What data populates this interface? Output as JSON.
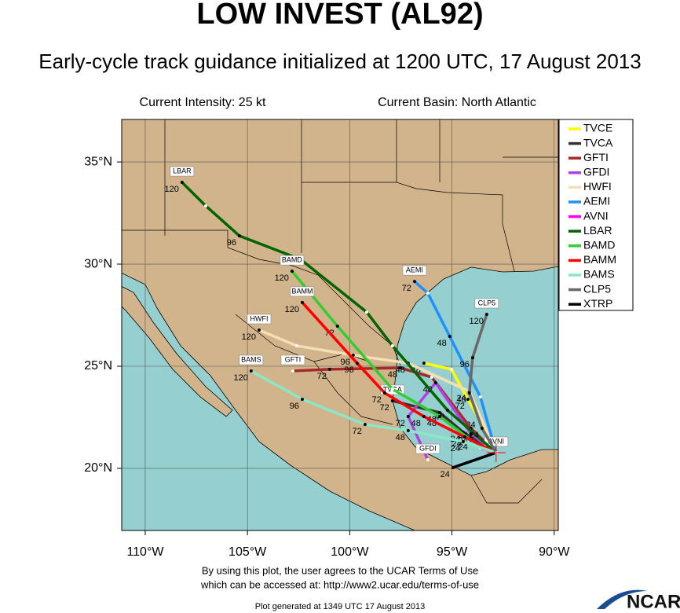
{
  "header": {
    "title": "LOW INVEST (AL92)",
    "subtitle": "Early-cycle track guidance initialized at 1200 UTC, 17 August 2013",
    "intensity": "Current Intensity: 25 kt",
    "basin": "Current Basin: North Atlantic"
  },
  "map": {
    "lonlim": [
      -111.15,
      -89.8
    ],
    "latlim": [
      16.96,
      37.08
    ],
    "lonticks": [
      {
        "value": -110,
        "label": "110°W"
      },
      {
        "value": -105,
        "label": "105°W"
      },
      {
        "value": -100,
        "label": "100°W"
      },
      {
        "value": -95,
        "label": "95°W"
      },
      {
        "value": -90,
        "label": "90°W"
      }
    ],
    "latticks": [
      {
        "value": 20,
        "label": "20°N"
      },
      {
        "value": 25,
        "label": "25°N"
      },
      {
        "value": 30,
        "label": "30°N"
      },
      {
        "value": 35,
        "label": "35°N"
      }
    ],
    "grid": true,
    "start": {
      "lon": -92.84,
      "lat": 20.77
    }
  },
  "tracks": [
    {
      "name": "TVCE",
      "color": "#ffff00",
      "boxed": false,
      "points": [
        {
          "lon": -92.84,
          "lat": 20.77
        },
        {
          "lon": -93.69,
          "lat": 22.46,
          "label": "24"
        },
        {
          "lon": -94.22,
          "lat": 23.38,
          "label": "72"
        },
        {
          "lon": -95.03,
          "lat": 24.85
        },
        {
          "lon": -96.37,
          "lat": 25.15,
          "label": "48"
        }
      ]
    },
    {
      "name": "TVCA",
      "color": "#333333",
      "boxed": true,
      "points": [
        {
          "lon": -92.84,
          "lat": 20.77
        },
        {
          "lon": -94.45,
          "lat": 21.77,
          "label": "24"
        },
        {
          "lon": -95.6,
          "lat": 22.73,
          "label": "48"
        },
        {
          "lon": -97.91,
          "lat": 23.31,
          "label": "72"
        }
      ]
    },
    {
      "name": "GFTI",
      "color": "#a52a2a",
      "boxed": true,
      "points": [
        {
          "lon": -92.84,
          "lat": 20.77
        },
        {
          "lon": -94.07,
          "lat": 21.96,
          "label": "24"
        },
        {
          "lon": -95.99,
          "lat": 24.46
        },
        {
          "lon": -97.52,
          "lat": 24.92,
          "label": "48"
        },
        {
          "lon": -100.98,
          "lat": 24.85,
          "label": "72"
        },
        {
          "lon": -102.78,
          "lat": 24.77
        }
      ]
    },
    {
      "name": "GFDI",
      "color": "#b040e0",
      "boxed": true,
      "points": [
        {
          "lon": -92.84,
          "lat": 20.77
        },
        {
          "lon": -94.07,
          "lat": 21.69,
          "label": "24"
        },
        {
          "lon": -95.8,
          "lat": 24.19,
          "label": "48"
        },
        {
          "lon": -97.14,
          "lat": 22.54,
          "label": "72"
        },
        {
          "lon": -96.18,
          "lat": 20.42
        }
      ]
    },
    {
      "name": "HWFI",
      "color": "#f5deb3",
      "boxed": true,
      "points": [
        {
          "lon": -92.84,
          "lat": 20.77
        },
        {
          "lon": -94.15,
          "lat": 23.77,
          "label": "24"
        },
        {
          "lon": -97.14,
          "lat": 25.15,
          "label": "48"
        },
        {
          "lon": -99.83,
          "lat": 25.54,
          "label": "96"
        },
        {
          "lon": -102.59,
          "lat": 26.0
        },
        {
          "lon": -104.43,
          "lat": 26.77,
          "label": "120"
        }
      ]
    },
    {
      "name": "AEMI",
      "color": "#1e90ff",
      "boxed": true,
      "points": [
        {
          "lon": -92.84,
          "lat": 20.77
        },
        {
          "lon": -93.61,
          "lat": 23.5
        },
        {
          "lon": -95.11,
          "lat": 26.46,
          "label": "48"
        },
        {
          "lon": -96.18,
          "lat": 28.58
        },
        {
          "lon": -96.83,
          "lat": 29.15,
          "label": "72"
        }
      ]
    },
    {
      "name": "AVNI",
      "color": "#ff00ff",
      "boxed": true,
      "points": [
        {
          "lon": -93.61,
          "lat": 21.0
        },
        {
          "lon": -92.84,
          "lat": 20.77
        }
      ]
    },
    {
      "name": "LBAR",
      "color": "#006400",
      "boxed": true,
      "points": [
        {
          "lon": -92.84,
          "lat": 20.77
        },
        {
          "lon": -95.22,
          "lat": 22.85,
          "label": "48"
        },
        {
          "lon": -97.91,
          "lat": 26.0
        },
        {
          "lon": -99.17,
          "lat": 27.65
        },
        {
          "lon": -102.4,
          "lat": 30.23
        },
        {
          "lon": -105.39,
          "lat": 31.38,
          "label": "96"
        },
        {
          "lon": -107.04,
          "lat": 32.85
        },
        {
          "lon": -108.2,
          "lat": 34.0,
          "label": "120"
        }
      ]
    },
    {
      "name": "BAMD",
      "color": "#32cd32",
      "boxed": true,
      "points": [
        {
          "lon": -92.84,
          "lat": 20.77
        },
        {
          "lon": -94.07,
          "lat": 21.38,
          "label": "24"
        },
        {
          "lon": -95.6,
          "lat": 22.54,
          "label": "48"
        },
        {
          "lon": -97.91,
          "lat": 23.88
        },
        {
          "lon": -100.6,
          "lat": 26.96,
          "label": "72"
        },
        {
          "lon": -102.82,
          "lat": 29.65,
          "label": "120"
        }
      ]
    },
    {
      "name": "BAMM",
      "color": "#ff0000",
      "boxed": true,
      "points": [
        {
          "lon": -92.84,
          "lat": 20.77
        },
        {
          "lon": -94.38,
          "lat": 21.54,
          "label": "24"
        },
        {
          "lon": -96.37,
          "lat": 22.54,
          "label": "48"
        },
        {
          "lon": -98.29,
          "lat": 23.69,
          "label": "72"
        },
        {
          "lon": -99.64,
          "lat": 25.15,
          "label": "96"
        },
        {
          "lon": -102.32,
          "lat": 28.12,
          "label": "120"
        }
      ]
    },
    {
      "name": "BAMS",
      "color": "#88e8c8",
      "boxed": true,
      "points": [
        {
          "lon": -92.84,
          "lat": 20.77
        },
        {
          "lon": -94.45,
          "lat": 21.31,
          "label": "24"
        },
        {
          "lon": -97.14,
          "lat": 21.85,
          "label": "48"
        },
        {
          "lon": -99.25,
          "lat": 22.15,
          "label": "72"
        },
        {
          "lon": -102.32,
          "lat": 23.38,
          "label": "96"
        },
        {
          "lon": -104.82,
          "lat": 24.77,
          "label": "120"
        }
      ]
    },
    {
      "name": "CLP5",
      "color": "#696969",
      "boxed": true,
      "points": [
        {
          "lon": -92.84,
          "lat": 20.77
        },
        {
          "lon": -93.53,
          "lat": 21.96,
          "label": "24"
        },
        {
          "lon": -94.15,
          "lat": 23.69,
          "label": "48"
        },
        {
          "lon": -93.99,
          "lat": 25.42,
          "label": "96"
        },
        {
          "lon": -93.3,
          "lat": 27.54,
          "label": "120"
        }
      ]
    },
    {
      "name": "XTRP",
      "color": "#000000",
      "boxed": false,
      "points": [
        {
          "lon": -92.84,
          "lat": 20.77
        },
        {
          "lon": -94.95,
          "lat": 20.04,
          "label": "24"
        }
      ]
    }
  ],
  "footer": {
    "terms1": "By using this plot, the user agrees to the UCAR Terms of Use",
    "terms2": "which can be accessed at: http://www2.ucar.edu/terms-of-use",
    "generated": "Plot generated at 1349 UTC  17 August 2013",
    "logo": "NCAR"
  }
}
